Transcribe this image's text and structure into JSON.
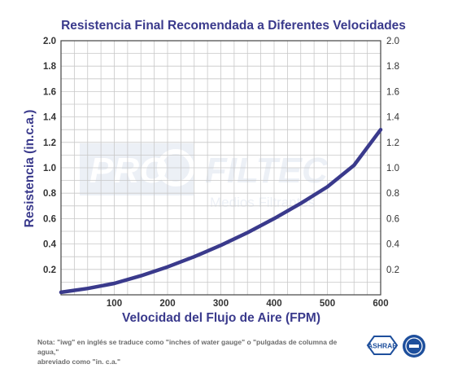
{
  "chart_data": {
    "type": "line",
    "title": "Resistencia Final Recomendada a Diferentes Velocidades",
    "xlabel": "Velocidad del Flujo de Aire (FPM)",
    "ylabel": "Resistencia (in.c.a.)",
    "xlim": [
      0,
      600
    ],
    "ylim": [
      0,
      2.0
    ],
    "x_ticks": [
      100,
      200,
      300,
      400,
      500,
      600
    ],
    "y_ticks": [
      0.2,
      0.4,
      0.6,
      0.8,
      1.0,
      1.2,
      1.4,
      1.6,
      1.8,
      2.0
    ],
    "y_tick_labels": [
      "0.2",
      "0.4",
      "0.6",
      "0.8",
      "1.0",
      "1.2",
      "1.4",
      "1.6",
      "1.8",
      "2.0"
    ],
    "right_axis_ticks": true,
    "grid": true,
    "series": [
      {
        "x": [
          0,
          50,
          100,
          150,
          200,
          250,
          300,
          350,
          400,
          450,
          500,
          550,
          600
        ],
        "y": [
          0.02,
          0.05,
          0.09,
          0.15,
          0.22,
          0.3,
          0.39,
          0.49,
          0.6,
          0.72,
          0.85,
          1.02,
          1.3
        ],
        "color": "#3a3a8c"
      }
    ]
  },
  "watermark": {
    "brand_left": "PRO",
    "brand_right": "FILTEC",
    "tagline": "Medios Filtrantes"
  },
  "note": {
    "line1": "Nota: \"iwg\" en inglés se traduce como \"inches of water gauge\" o \"pulgadas de columna de agua,\"",
    "line2": "abreviado como \"in. c.a.\""
  },
  "logos": {
    "ashrae": "ASHRAE"
  },
  "colors": {
    "title": "#3a3a8c",
    "line": "#3a3a8c",
    "grid": "#c8c8c8",
    "axis": "#333333"
  }
}
